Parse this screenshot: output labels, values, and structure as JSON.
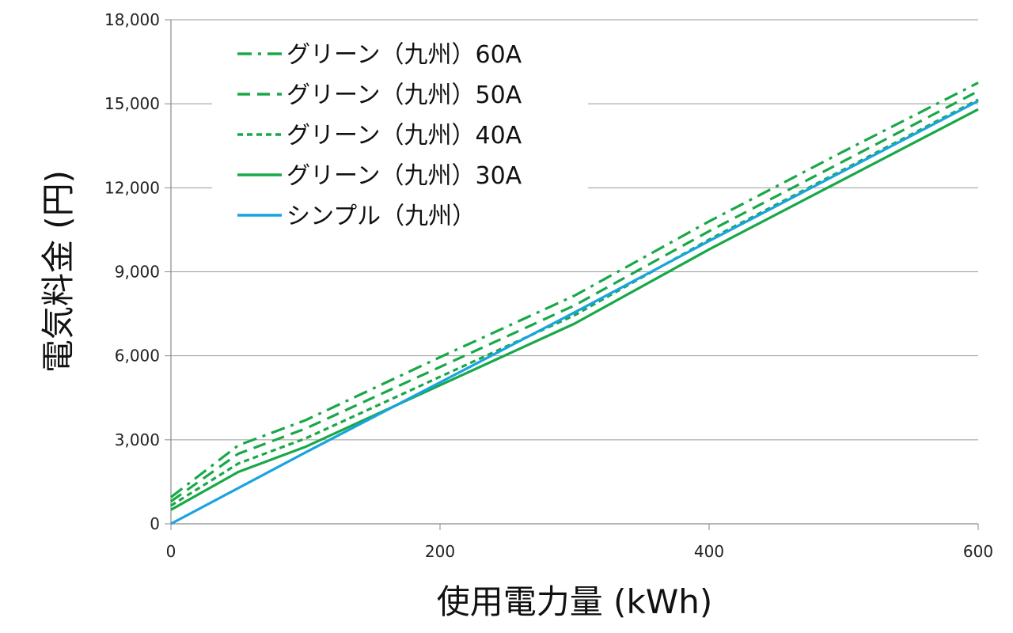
{
  "chart_data": {
    "type": "line",
    "xlabel": "使用電力量 (kWh)",
    "ylabel": "電気料金 (円)",
    "xlim": [
      0,
      600
    ],
    "ylim": [
      0,
      18000
    ],
    "x_ticks": [
      0,
      200,
      400,
      600
    ],
    "x_tick_labels": [
      "0",
      "200",
      "400",
      "600"
    ],
    "y_ticks": [
      0,
      3000,
      6000,
      9000,
      12000,
      15000,
      18000
    ],
    "y_tick_labels": [
      "0",
      "3,000",
      "6,000",
      "9,000",
      "12,000",
      "15,000",
      "18,000"
    ],
    "grid": "horizontal",
    "legend_position": "top-left",
    "series": [
      {
        "name": "グリーン（九州）60A",
        "color": "#19a848",
        "dash": "dash-dot",
        "x": [
          0,
          50,
          100,
          200,
          300,
          400,
          500,
          600
        ],
        "y": [
          950,
          2800,
          3700,
          5950,
          8150,
          10800,
          13300,
          15750
        ]
      },
      {
        "name": "グリーン（九州）50A",
        "color": "#19a848",
        "dash": "long-dash",
        "x": [
          0,
          50,
          100,
          200,
          300,
          400,
          500,
          600
        ],
        "y": [
          800,
          2500,
          3400,
          5600,
          7800,
          10450,
          12950,
          15450
        ]
      },
      {
        "name": "グリーン（九州）40A",
        "color": "#19a848",
        "dash": "short-dash",
        "x": [
          0,
          50,
          100,
          200,
          300,
          400,
          500,
          600
        ],
        "y": [
          650,
          2150,
          3050,
          5250,
          7450,
          10150,
          12650,
          15150
        ]
      },
      {
        "name": "グリーン（九州）30A",
        "color": "#19a848",
        "dash": "solid",
        "x": [
          0,
          50,
          100,
          200,
          300,
          400,
          500,
          600
        ],
        "y": [
          500,
          1850,
          2750,
          4950,
          7150,
          9800,
          12300,
          14800
        ]
      },
      {
        "name": "シンプル（九州）",
        "color": "#1aa3de",
        "dash": "solid",
        "x": [
          0,
          100,
          200,
          300,
          400,
          500,
          600
        ],
        "y": [
          0,
          2550,
          5050,
          7550,
          10100,
          12600,
          15100
        ]
      }
    ]
  }
}
